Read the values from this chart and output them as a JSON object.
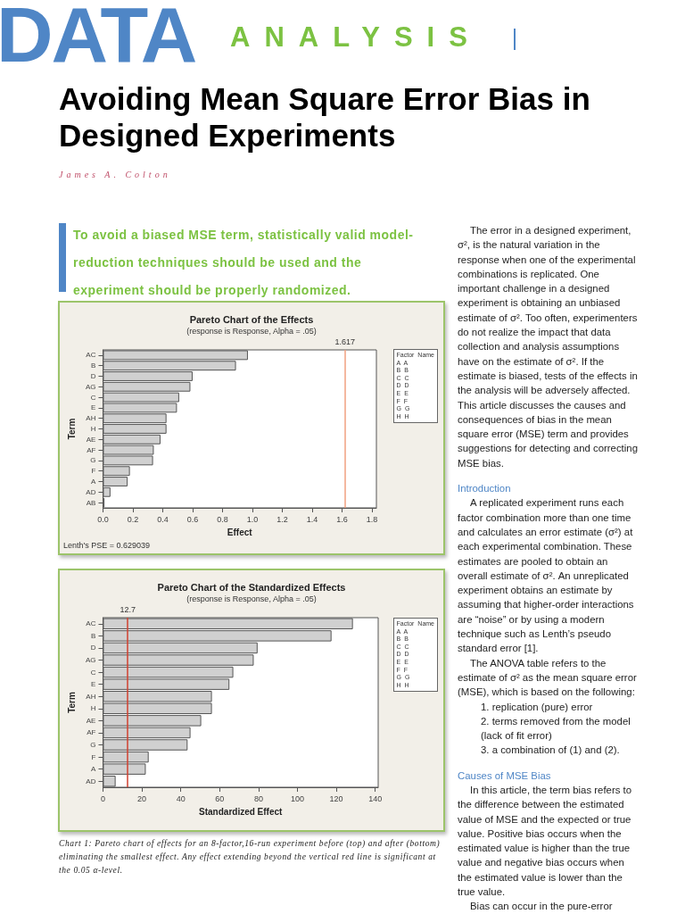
{
  "chart_data": [
    {
      "type": "bar",
      "orientation": "horizontal",
      "title": "Pareto Chart of the Effects",
      "subtitle": "(response is Response, Alpha = .05)",
      "xlabel": "Effect",
      "ylabel": "Term",
      "categories": [
        "AC",
        "B",
        "D",
        "AG",
        "C",
        "E",
        "AH",
        "H",
        "AE",
        "AF",
        "G",
        "F",
        "A",
        "AD",
        "AB"
      ],
      "values": [
        0.97,
        0.89,
        0.6,
        0.585,
        0.51,
        0.495,
        0.425,
        0.425,
        0.385,
        0.34,
        0.335,
        0.18,
        0.165,
        0.05,
        0.01
      ],
      "color": "#d0d0d0",
      "xlim": [
        0,
        1.83
      ],
      "xticks": [
        {
          "value": 0,
          "label": "0.0"
        },
        0.2,
        0.4,
        0.6,
        0.8,
        {
          "value": 1,
          "label": "1.0"
        },
        1.2,
        1.4,
        1.6,
        1.8
      ],
      "grid": false,
      "ref_lines": [
        {
          "axis": "x",
          "value": 1.617,
          "label": "1.617",
          "color": "#f0a080"
        }
      ],
      "annotations": [
        "Lenth's PSE = 0.629039",
        "Factor  Name\nA  A\nB  B\nC  C\nD  D\nE  E\nF  F\nG  G\nH  H",
        "DATA",
        "ANALYSIS",
        "Avoiding Mean Square Error Bias in Designed Experiments",
        "James A. Colton",
        "To avoid a biased MSE term, statistically valid model-reduction techniques should be used and the experiment should be properly randomized.",
        "The error in a designed experiment, σ², is the natural variation in the response when one of the experimental combinations is replicated. One important challenge in a designed experiment is obtaining an unbiased estimate of σ². Too often, experimenters do not realize the impact that data collection and analysis assumptions have on the estimate of σ². If the estimate is biased, tests of the effects in the analysis will be adversely affected. This article discusses the causes and consequences of bias in the mean square error (MSE) term and provides suggestions for detecting and correcting MSE bias.",
        "Introduction",
        "A replicated experiment runs each factor combination more than one time and calculates an error estimate (σ²) at each experimental combination. These estimates are pooled to obtain an overall estimate of σ². An unreplicated experiment obtains an estimate by assuming that higher-order interactions are “noise” or by using a modern technique such as Lenth’s pseudo standard error [1].",
        "The ANOVA table refers to the estimate of σ² as the mean square error (MSE), which is based on the following:",
        "1. replication (pure) error",
        "2. terms removed from the model (lack of fit error)",
        "3. a combination of (1) and (2).",
        "Causes of MSE Bias",
        "In this article, the term bias refers to the difference between the estimated value of MSE and the expected or true value. Positive bias occurs when the estimated value is higher than the true value and negative bias occurs when the estimated value is lower than the true value.",
        "Bias can occur in the pure-error"
      ]
    },
    {
      "type": "bar",
      "orientation": "horizontal",
      "title": "Pareto Chart of the Standardized Effects",
      "subtitle": "(response is Response, Alpha = .05)",
      "xlabel": "Standardized Effect",
      "ylabel": "Term",
      "categories": [
        "AC",
        "B",
        "D",
        "AG",
        "C",
        "E",
        "AH",
        "H",
        "AE",
        "AF",
        "G",
        "F",
        "A",
        "AD"
      ],
      "values": [
        128.5,
        117.5,
        79.5,
        77.5,
        67,
        65,
        56,
        56,
        50.5,
        45,
        43.5,
        23.5,
        22,
        6.5
      ],
      "color": "#d0d0d0",
      "xlim": [
        0,
        141.5
      ],
      "xticks": [
        0,
        20,
        40,
        60,
        80,
        100,
        120,
        140
      ],
      "grid": false,
      "ref_lines": [
        {
          "axis": "x",
          "value": 12.7,
          "label": "12.7",
          "color": "#d04030"
        }
      ],
      "annotations": [
        "Factor  Name\nA  A\nB  B\nC  C\nD  D\nE  E\nF  F\nG  G\nH  H",
        "Chart 1: Pareto chart of effects for an 8-factor,16-run experiment before (top) and after (bottom) eliminating the smallest effect. Any effect extending beyond the vertical red line is significant at the 0.05 α-level."
      ]
    }
  ]
}
